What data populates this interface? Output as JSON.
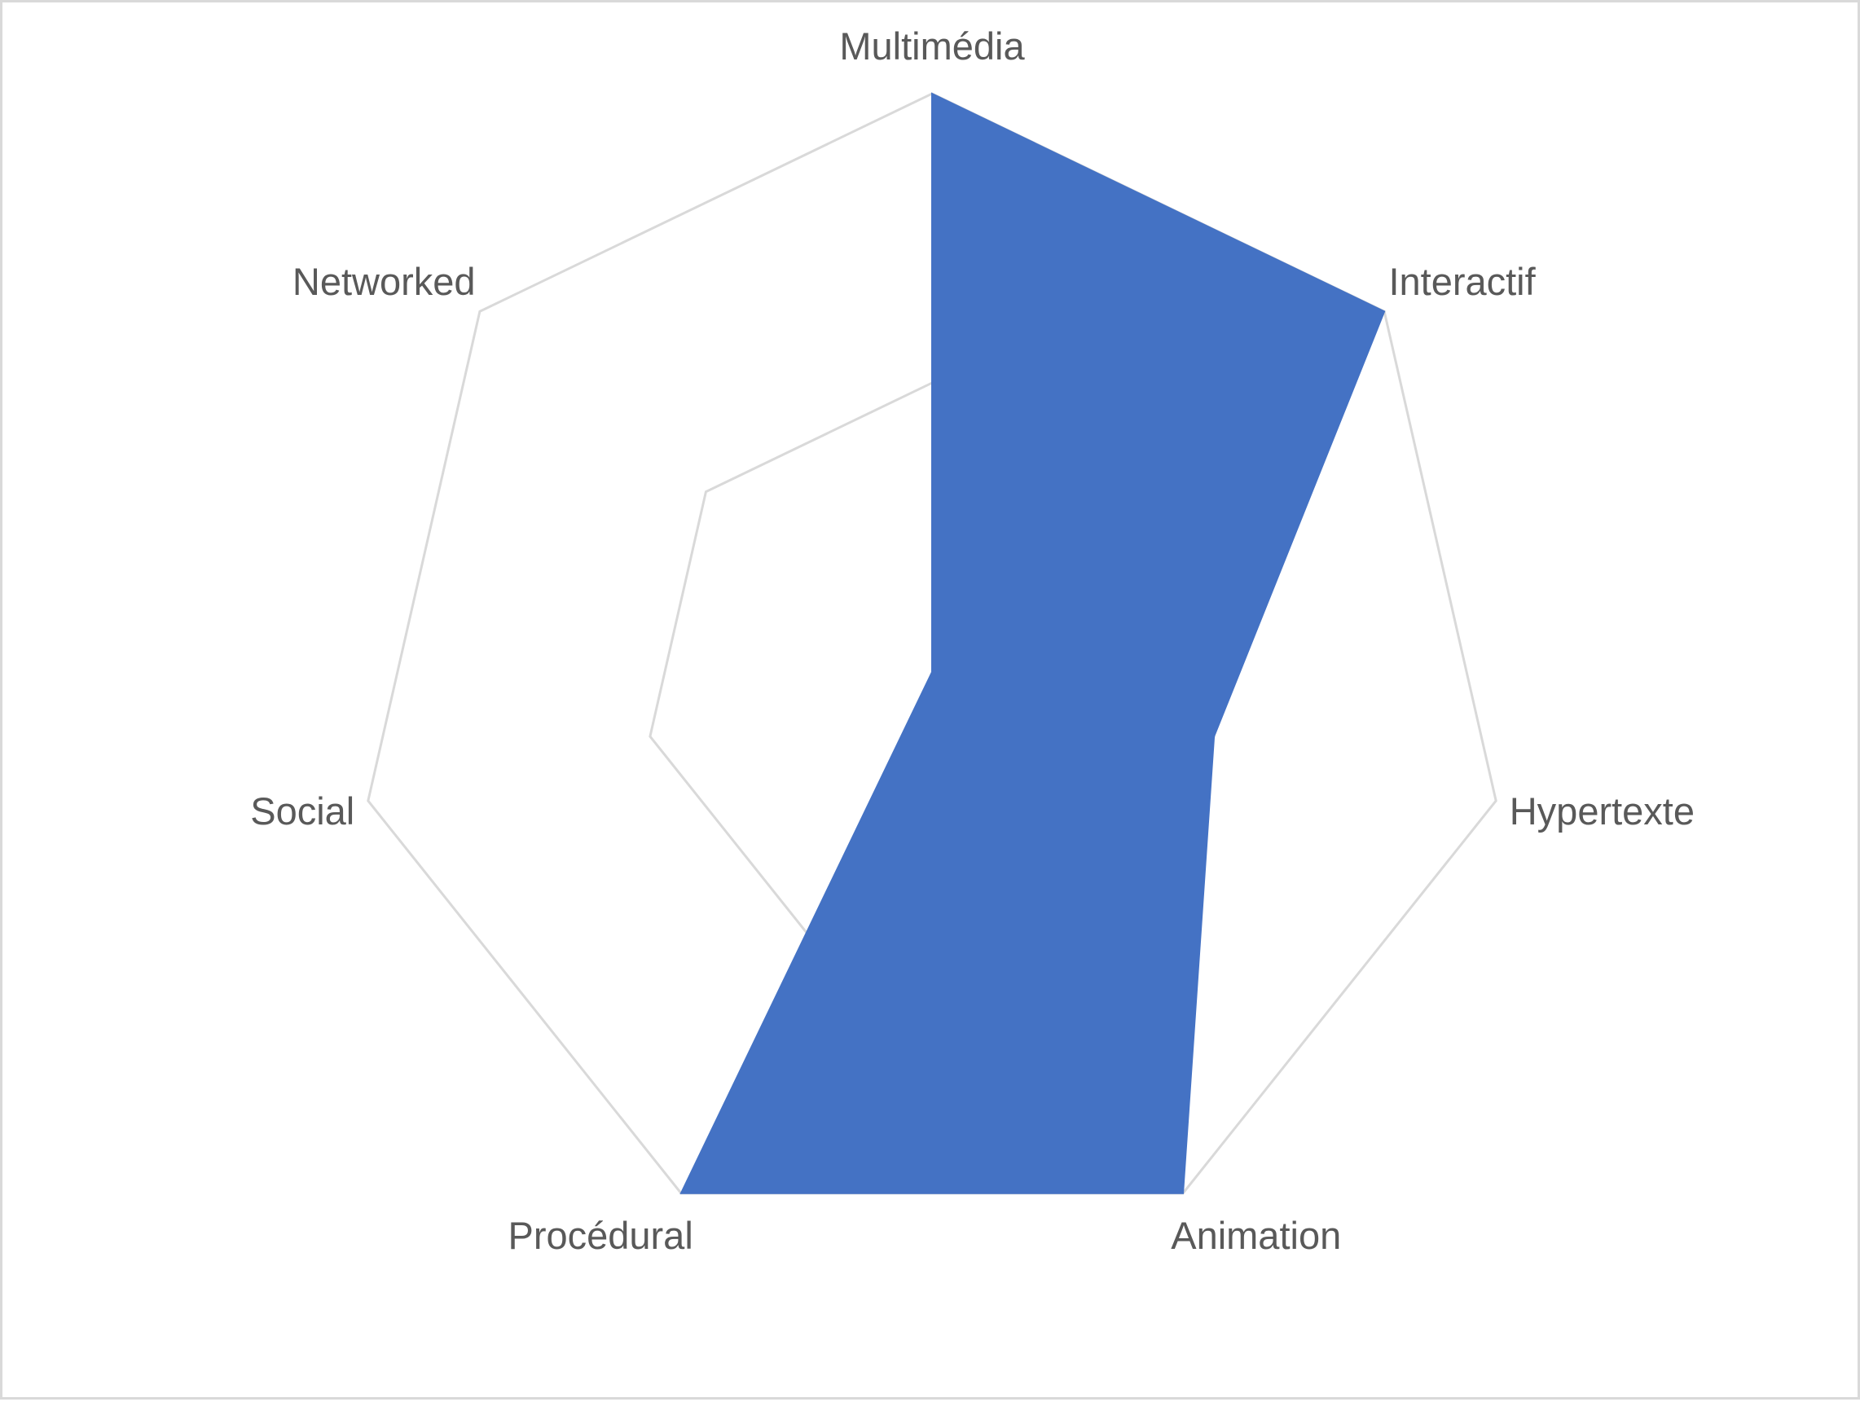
{
  "chart_data": {
    "type": "radar",
    "categories": [
      "Multimédia",
      "Interactif",
      "Hypertexte",
      "Animation",
      "Procédural",
      "Social",
      "Networked"
    ],
    "series": [
      {
        "values": [
          2,
          2,
          1,
          2,
          2,
          0,
          0
        ],
        "color": "#4472c4"
      }
    ],
    "rlim": [
      0,
      2
    ],
    "grid": true,
    "grid_color": "#d9d9d9",
    "label_color": "#595959",
    "legend": "none"
  }
}
